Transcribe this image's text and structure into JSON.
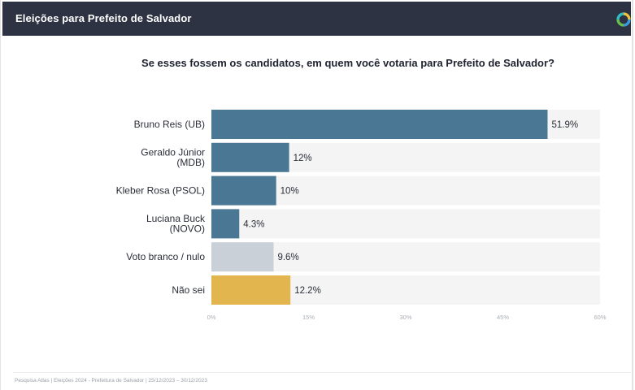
{
  "header": {
    "title": "Eleições para Prefeito de Salvador",
    "logo_icon": "atlas-logo-icon"
  },
  "colors": {
    "header_bg": "#2d3342",
    "bar_primary": "#4a7894",
    "bar_blank": "#c9d0d8",
    "bar_unknown": "#e2b54f",
    "track": "#f4f4f4"
  },
  "chart_data": {
    "type": "bar",
    "orientation": "horizontal",
    "title": "Se esses fossem os candidatos, em quem você votaria para Prefeito de Salvador?",
    "categories": [
      [
        "Bruno Reis (UB)"
      ],
      [
        "Geraldo Júnior",
        "(MDB)"
      ],
      [
        "Kleber Rosa (PSOL)"
      ],
      [
        "Luciana Buck",
        "(NOVO)"
      ],
      [
        "Voto branco / nulo"
      ],
      [
        "Não sei"
      ]
    ],
    "values": [
      51.9,
      12,
      10,
      4.3,
      9.6,
      12.2
    ],
    "data_labels": [
      "51.9%",
      "12%",
      "10%",
      "4.3%",
      "9.6%",
      "12.2%"
    ],
    "bar_colors": [
      "#4a7894",
      "#4a7894",
      "#4a7894",
      "#4a7894",
      "#c9d0d8",
      "#e2b54f"
    ],
    "xlim": [
      0,
      60
    ],
    "xticks": [
      0,
      15,
      30,
      45,
      60
    ],
    "xtick_labels": [
      "0%",
      "15%",
      "30%",
      "45%",
      "60%"
    ],
    "grid": false,
    "legend": "none"
  },
  "footer": {
    "source": "Pesquisa Atlas | Eleições 2024 - Prefeitura de Salvador | 25/12/2023 – 30/12/2023"
  }
}
